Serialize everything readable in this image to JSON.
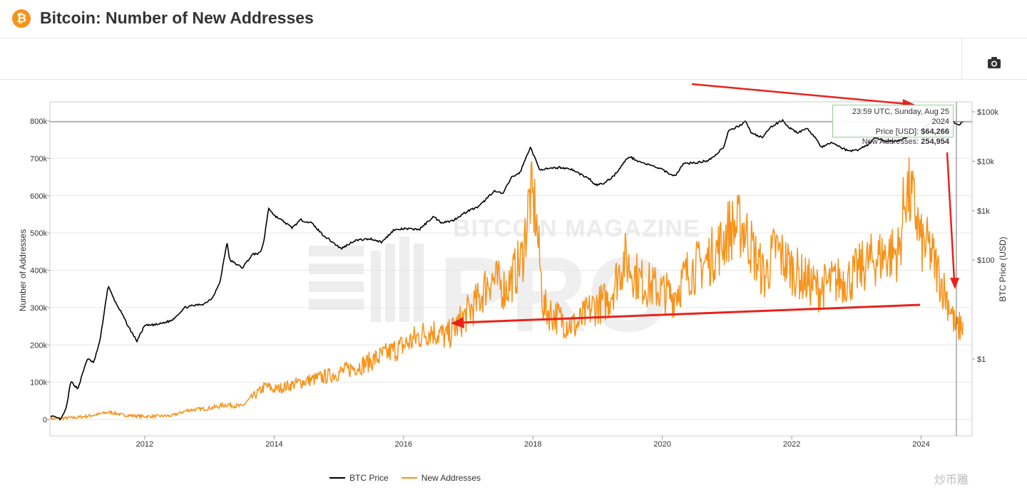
{
  "header": {
    "logo_symbol": "₿",
    "title": "Bitcoin: Number of New Addresses"
  },
  "toolbar": {
    "camera_icon": "camera-icon"
  },
  "tooltip": {
    "timestamp": "23:59 UTC, Sunday, Aug 25 2024",
    "price_label": "Price [USD]:",
    "price_value": "$64,266",
    "addresses_label": "New Addresses:",
    "addresses_value": "254,954"
  },
  "background_text": {
    "brand": "BITCOIN MAGAZINE",
    "pro": "PRO"
  },
  "legend": [
    {
      "name": "BTC Price",
      "color": "#000000"
    },
    {
      "name": "New Addresses",
      "color": "#f7931a"
    }
  ],
  "watermark": "炒币雕",
  "colors": {
    "accent": "#f7931a",
    "price_line": "#000000",
    "annotation_arrow": "#e8231b"
  },
  "chart_data": {
    "type": "line",
    "ylabel_left": "Number of Addresses",
    "ylabel_right": "BTC Price (USD)",
    "left_axis": {
      "ylim": [
        0,
        800000
      ],
      "ticks": [
        0,
        100000,
        200000,
        300000,
        400000,
        500000,
        600000,
        700000,
        800000
      ],
      "tick_labels": [
        "0",
        "100k",
        "200k",
        "300k",
        "400k",
        "500k",
        "600k",
        "700k",
        "800k"
      ]
    },
    "right_axis": {
      "scale": "log",
      "ticks": [
        1,
        100,
        1000,
        10000,
        100000
      ],
      "tick_labels": [
        "$1",
        "$100",
        "$1k",
        "$10k",
        "$100k"
      ]
    },
    "x_axis": {
      "xlim": [
        "2010-07-15",
        "2024-10-15"
      ],
      "tick_labels": [
        "2012",
        "2014",
        "2016",
        "2018",
        "2020",
        "2022",
        "2024"
      ]
    },
    "grid": true,
    "legend_position": "bottom-center",
    "series": [
      {
        "name": "BTC Price",
        "axis": "right",
        "color": "#000000",
        "x": [
          "2010-07-20",
          "2010-09-15",
          "2010-10-15",
          "2010-11-10",
          "2010-12-20",
          "2011-02-10",
          "2011-03-20",
          "2011-04-25",
          "2011-06-08",
          "2011-07-20",
          "2011-08-20",
          "2011-10-01",
          "2011-11-18",
          "2011-12-31",
          "2012-03-15",
          "2012-06-01",
          "2012-08-15",
          "2012-10-01",
          "2012-12-01",
          "2013-01-15",
          "2013-03-01",
          "2013-04-09",
          "2013-04-25",
          "2013-07-05",
          "2013-09-01",
          "2013-10-15",
          "2013-11-05",
          "2013-11-30",
          "2014-01-01",
          "2014-02-25",
          "2014-04-10",
          "2014-06-01",
          "2014-08-01",
          "2014-10-01",
          "2015-01-14",
          "2015-04-01",
          "2015-07-01",
          "2015-09-01",
          "2015-11-04",
          "2016-01-01",
          "2016-04-01",
          "2016-06-17",
          "2016-08-01",
          "2016-10-01",
          "2017-01-01",
          "2017-03-01",
          "2017-05-25",
          "2017-07-15",
          "2017-09-01",
          "2017-10-20",
          "2017-12-17",
          "2018-02-06",
          "2018-04-01",
          "2018-06-01",
          "2018-08-01",
          "2018-11-20",
          "2018-12-15",
          "2019-02-01",
          "2019-04-01",
          "2019-06-26",
          "2019-09-01",
          "2019-12-15",
          "2020-03-12",
          "2020-05-01",
          "2020-07-20",
          "2020-09-10",
          "2020-10-25",
          "2020-12-15",
          "2021-01-08",
          "2021-03-01",
          "2021-04-14",
          "2021-05-20",
          "2021-07-20",
          "2021-09-01",
          "2021-11-10",
          "2021-12-20",
          "2022-02-01",
          "2022-04-01",
          "2022-05-15",
          "2022-06-18",
          "2022-08-15",
          "2022-11-09",
          "2022-12-31",
          "2023-03-10",
          "2023-04-15",
          "2023-06-15",
          "2023-09-11",
          "2023-11-01",
          "2023-12-31",
          "2024-03-14",
          "2024-04-30",
          "2024-06-01",
          "2024-08-05",
          "2024-08-25"
        ],
        "values": [
          0.07,
          0.06,
          0.1,
          0.35,
          0.25,
          1.0,
          0.85,
          2.5,
          30,
          14,
          9,
          4.5,
          2.3,
          4.7,
          5.0,
          6.0,
          11,
          12,
          13,
          17,
          35,
          230,
          100,
          70,
          130,
          140,
          250,
          1150,
          800,
          600,
          450,
          650,
          560,
          330,
          170,
          250,
          270,
          230,
          400,
          430,
          420,
          760,
          580,
          620,
          1000,
          1200,
          2500,
          2200,
          4700,
          5900,
          19500,
          6900,
          7000,
          7500,
          7000,
          4300,
          3300,
          3500,
          5000,
          12500,
          9600,
          7200,
          5000,
          9000,
          9400,
          10300,
          13000,
          20000,
          40000,
          50000,
          63500,
          37000,
          30000,
          48000,
          68000,
          47000,
          38000,
          45000,
          30000,
          19000,
          24000,
          16500,
          16500,
          22000,
          30000,
          25500,
          26000,
          35000,
          42000,
          70000,
          60000,
          70000,
          54000,
          64266
        ]
      },
      {
        "name": "New Addresses",
        "axis": "left",
        "color": "#f7931a",
        "x": [
          "2010-07-20",
          "2010-12-01",
          "2011-03-01",
          "2011-06-15",
          "2011-09-01",
          "2012-01-01",
          "2012-06-01",
          "2012-09-01",
          "2013-01-01",
          "2013-04-10",
          "2013-07-01",
          "2013-11-15",
          "2014-01-01",
          "2014-06-01",
          "2014-12-01",
          "2015-06-01",
          "2015-12-01",
          "2016-06-01",
          "2016-09-01",
          "2016-12-01",
          "2017-03-01",
          "2017-05-01",
          "2017-08-01",
          "2017-11-01",
          "2017-12-15",
          "2018-01-15",
          "2018-03-01",
          "2018-06-01",
          "2018-09-01",
          "2018-12-01",
          "2019-03-01",
          "2019-06-01",
          "2019-09-01",
          "2019-12-01",
          "2020-03-01",
          "2020-06-01",
          "2020-09-01",
          "2020-12-01",
          "2021-01-10",
          "2021-04-01",
          "2021-06-15",
          "2021-08-01",
          "2021-10-01",
          "2021-12-01",
          "2022-03-01",
          "2022-06-01",
          "2022-09-01",
          "2022-12-01",
          "2023-03-01",
          "2023-06-01",
          "2023-09-01",
          "2023-10-05",
          "2023-12-01",
          "2024-01-01",
          "2024-02-15",
          "2024-04-01",
          "2024-05-15",
          "2024-06-15",
          "2024-07-15",
          "2024-08-25"
        ],
        "values": [
          2000,
          5000,
          10000,
          20000,
          12000,
          8000,
          10000,
          25000,
          30000,
          40000,
          35000,
          90000,
          80000,
          100000,
          120000,
          150000,
          190000,
          240000,
          220000,
          270000,
          320000,
          380000,
          350000,
          430000,
          600000,
          560000,
          300000,
          270000,
          250000,
          300000,
          320000,
          430000,
          370000,
          350000,
          330000,
          400000,
          420000,
          470000,
          510000,
          520000,
          430000,
          380000,
          460000,
          420000,
          380000,
          350000,
          370000,
          380000,
          420000,
          440000,
          450000,
          620000,
          560000,
          470000,
          460000,
          400000,
          340000,
          300000,
          240000,
          254954
        ]
      }
    ]
  }
}
